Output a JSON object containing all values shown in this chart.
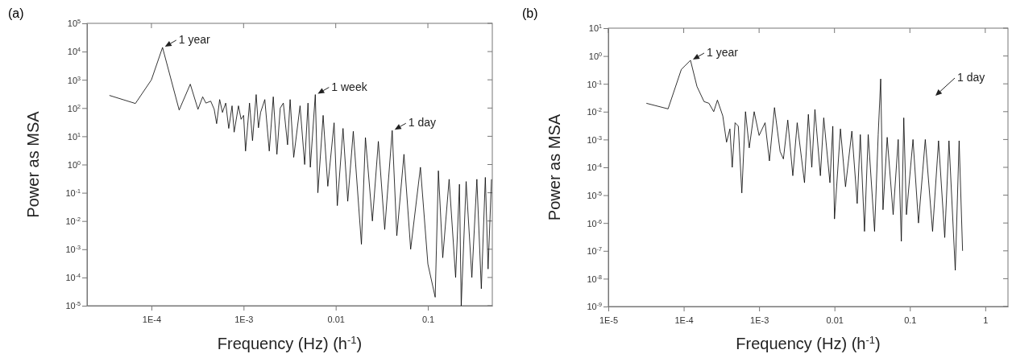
{
  "chart_data": [
    {
      "type": "line",
      "title": "(a)",
      "xlabel": "Frequency (Hz) (h$^{-1}$)",
      "ylabel": "Power as MSA",
      "log": "xy",
      "color": "#000000",
      "marker": "none",
      "line_style": "solid",
      "grid": false,
      "xlim": [
        2e-05,
        0.5
      ],
      "xticks": [
        {
          "value": 0.0001,
          "label": "1E-4"
        },
        {
          "value": 0.001,
          "label": "1E-3"
        },
        0.01,
        0.1
      ],
      "ylim": [
        1e-05,
        100000
      ],
      "yticks": [
        {
          "value": 1e-05,
          "label": "10$^{-5}$"
        },
        {
          "value": 0.0001,
          "label": "10$^{-4}$"
        },
        {
          "value": 0.001,
          "label": "10$^{-3}$"
        },
        {
          "value": 0.01,
          "label": "10$^{-2}$"
        },
        {
          "value": 0.1,
          "label": "10$^{-1}$"
        },
        {
          "value": 1,
          "label": "10$^{0}$"
        },
        {
          "value": 10,
          "label": "10$^{1}$"
        },
        {
          "value": 100,
          "label": "10$^{2}$"
        },
        {
          "value": 1000,
          "label": "10$^{3}$"
        },
        {
          "value": 10000,
          "label": "10$^{4}$"
        },
        {
          "value": 100000,
          "label": "10$^{5}$"
        }
      ],
      "x": [
        3.5e-05,
        6.7e-05,
        0.0001,
        0.000132,
        0.0002,
        0.000264,
        0.00032,
        0.00036,
        0.00039,
        0.00044,
        0.00048,
        0.00051,
        0.00055,
        0.00059,
        0.00064,
        0.00069,
        0.00075,
        0.00079,
        0.00088,
        0.00094,
        0.001,
        0.00105,
        0.00116,
        0.00125,
        0.00137,
        0.00145,
        0.00153,
        0.0017,
        0.0019,
        0.0021,
        0.0023,
        0.0025,
        0.0027,
        0.003,
        0.0032,
        0.0035,
        0.0041,
        0.0046,
        0.005,
        0.0053,
        0.006,
        0.0064,
        0.0073,
        0.0082,
        0.0096,
        0.0104,
        0.012,
        0.0135,
        0.0155,
        0.019,
        0.021,
        0.025,
        0.029,
        0.034,
        0.041,
        0.046,
        0.055,
        0.065,
        0.083,
        0.1,
        0.12,
        0.13,
        0.145,
        0.17,
        0.2,
        0.22,
        0.23,
        0.26,
        0.3,
        0.34,
        0.38,
        0.42,
        0.45,
        0.49
      ],
      "values": [
        280,
        145,
        1000,
        14000,
        85,
        700,
        90,
        250,
        150,
        175,
        90,
        28,
        200,
        70,
        150,
        19,
        120,
        14,
        120,
        40,
        55,
        3,
        150,
        7,
        300,
        20,
        70,
        200,
        3,
        250,
        2.3,
        100,
        150,
        5,
        200,
        1.8,
        120,
        1,
        150,
        0.8,
        300,
        0.1,
        55,
        0.17,
        30,
        0.035,
        19,
        0.05,
        15,
        0.0015,
        9,
        0.01,
        6.6,
        0.005,
        16,
        0.003,
        2.3,
        0.001,
        0.8,
        0.0003,
        2e-05,
        0.6,
        0.0005,
        0.3,
        0.0001,
        0.2,
        1e-05,
        0.25,
        0.0001,
        0.3,
        4e-05,
        0.35,
        0.0002,
        0.3
      ],
      "annotations": [
        {
          "text": "1 year",
          "x": 0.000132,
          "y": 14000
        },
        {
          "text": "1 week",
          "x": 0.006,
          "y": 300
        },
        {
          "text": "1 day",
          "x": 0.041,
          "y": 16
        }
      ]
    },
    {
      "type": "line",
      "title": "(b)",
      "xlabel": "Frequency (Hz) (h$^{-1}$)",
      "ylabel": "Power as MSA",
      "log": "xy",
      "color": "#000000",
      "marker": "none",
      "line_style": "solid",
      "grid": false,
      "xlim": [
        1e-05,
        2
      ],
      "xticks": [
        {
          "value": 1e-05,
          "label": "1E-5"
        },
        {
          "value": 0.0001,
          "label": "1E-4"
        },
        {
          "value": 0.001,
          "label": "1E-3"
        },
        0.01,
        0.1,
        1
      ],
      "ylim": [
        1e-09,
        10
      ],
      "yticks": [
        {
          "value": 1e-09,
          "label": "10$^{-9}$"
        },
        {
          "value": 1e-08,
          "label": "10$^{-8}$"
        },
        {
          "value": 1e-07,
          "label": "10$^{-7}$"
        },
        {
          "value": 1e-06,
          "label": "10$^{-6}$"
        },
        {
          "value": 1e-05,
          "label": "10$^{-5}$"
        },
        {
          "value": 0.0001,
          "label": "10$^{-4}$"
        },
        {
          "value": 0.001,
          "label": "10$^{-3}$"
        },
        {
          "value": 0.01,
          "label": "10$^{-2}$"
        },
        {
          "value": 0.1,
          "label": "10$^{-1}$"
        },
        {
          "value": 1,
          "label": "10$^{0}$"
        },
        {
          "value": 10,
          "label": "10$^{1}$"
        }
      ],
      "x": [
        3.2e-05,
        6.2e-05,
        9.3e-05,
        0.000123,
        0.00015,
        0.000186,
        0.000216,
        0.00025,
        0.00028,
        0.00033,
        0.00037,
        0.00041,
        0.00044,
        0.00048,
        0.00053,
        0.00059,
        0.00066,
        0.00074,
        0.00086,
        0.001,
        0.0012,
        0.00137,
        0.0016,
        0.0019,
        0.0021,
        0.0024,
        0.0028,
        0.0032,
        0.004,
        0.0045,
        0.005,
        0.0055,
        0.0065,
        0.0072,
        0.0087,
        0.0095,
        0.01,
        0.012,
        0.014,
        0.017,
        0.02,
        0.022,
        0.025,
        0.028,
        0.034,
        0.038,
        0.041,
        0.044,
        0.05,
        0.06,
        0.07,
        0.077,
        0.083,
        0.09,
        0.11,
        0.13,
        0.16,
        0.2,
        0.24,
        0.29,
        0.33,
        0.4,
        0.45,
        0.5
      ],
      "values": [
        0.02,
        0.0126,
        0.33,
        0.7,
        0.08,
        0.023,
        0.02,
        0.01,
        0.026,
        0.007,
        0.0008,
        0.0024,
        0.0001,
        0.004,
        0.003,
        1.2e-05,
        0.01,
        0.0005,
        0.01,
        0.0014,
        0.004,
        0.00017,
        0.014,
        0.00037,
        0.0002,
        0.005,
        5e-05,
        0.004,
        2.8e-05,
        0.008,
        0.0001,
        0.012,
        5e-05,
        0.006,
        2.8e-05,
        0.003,
        1.4e-06,
        0.0024,
        2e-05,
        0.002,
        5e-06,
        0.0015,
        5e-07,
        0.0015,
        5e-07,
        0.0015,
        0.15,
        3e-06,
        0.0012,
        2e-06,
        0.001,
        2.2e-07,
        0.006,
        2e-06,
        0.001,
        1e-06,
        0.001,
        5e-07,
        0.0009,
        3e-07,
        0.0009,
        2e-08,
        0.0009,
        1e-07
      ],
      "annotations": [
        {
          "text": "1 year",
          "x": 0.000123,
          "y": 0.7
        },
        "1 day"
      ]
    }
  ]
}
